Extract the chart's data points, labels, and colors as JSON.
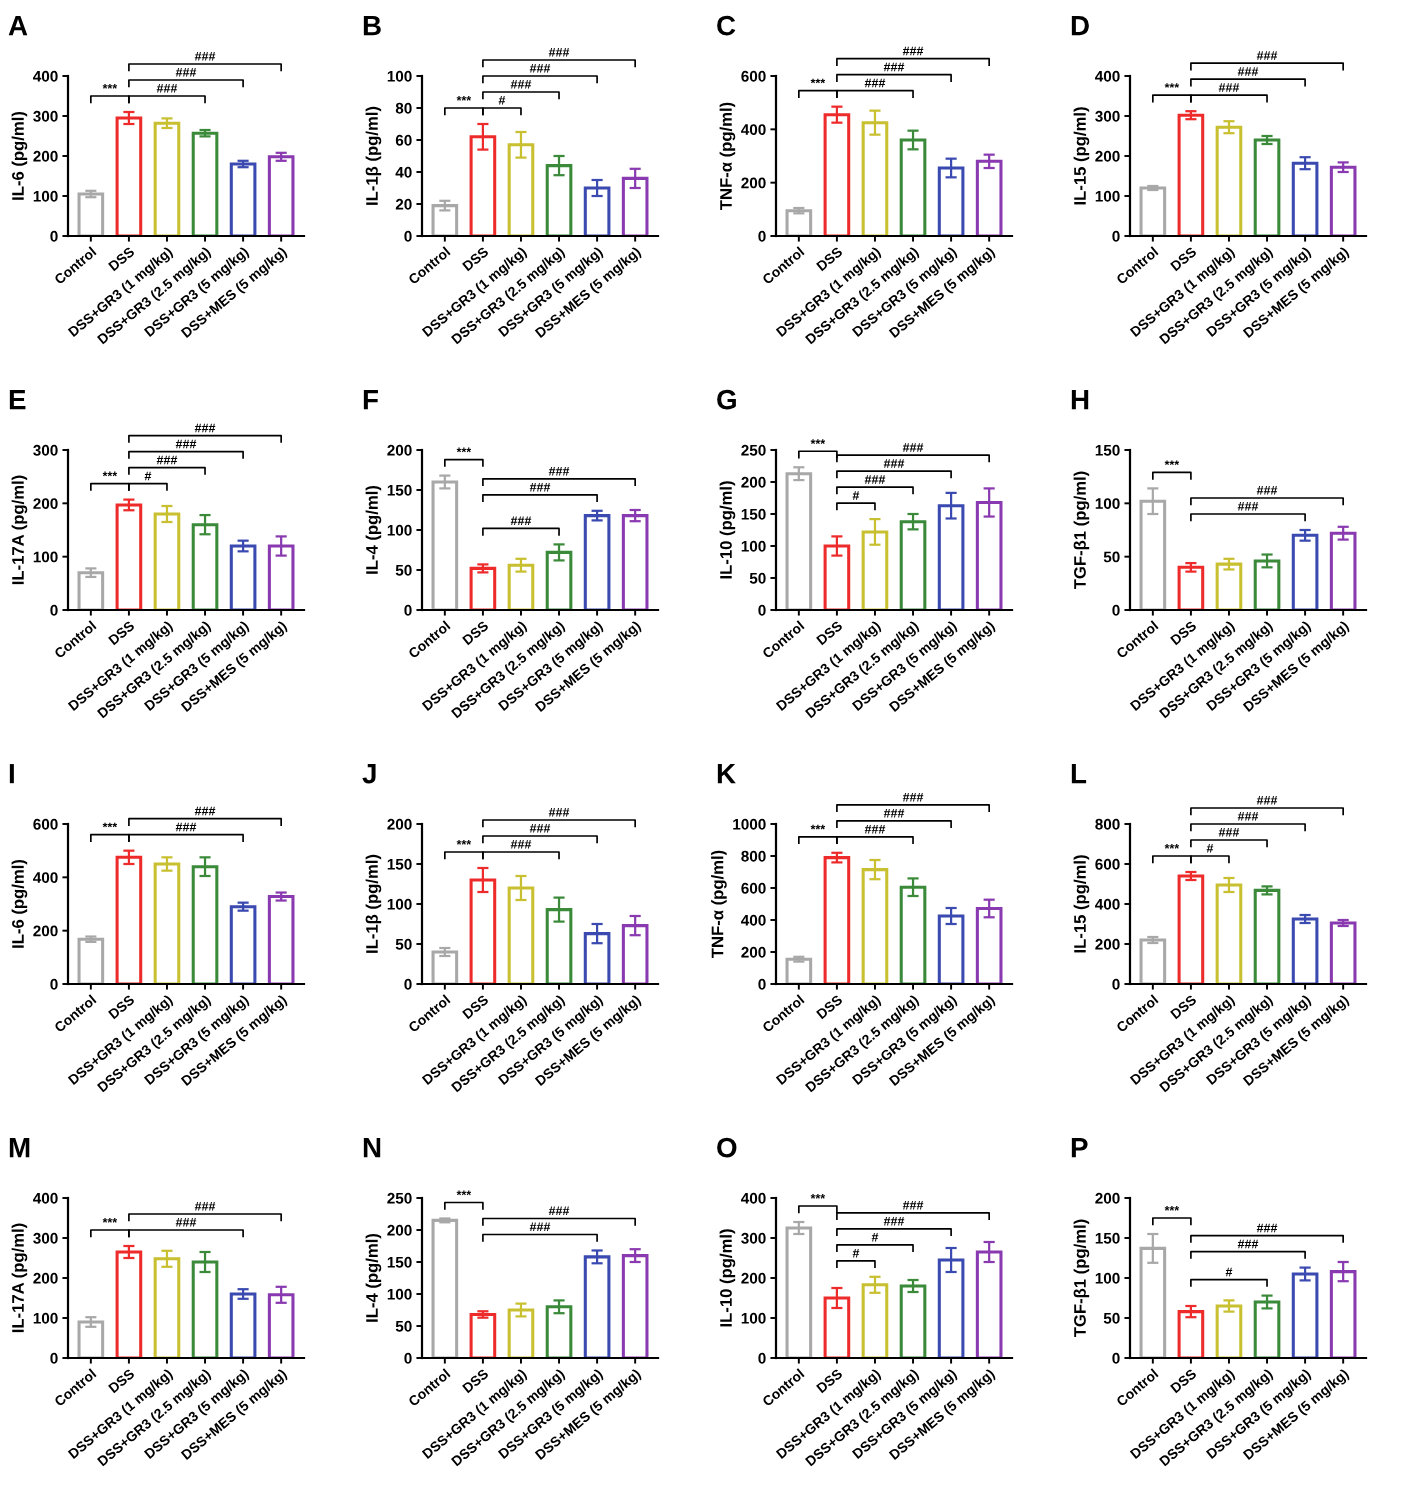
{
  "chart_data": [
    {
      "type": "bar",
      "title": "A",
      "ylabel": "IL-6 (pg/ml)",
      "categories": [
        "Control",
        "DSS",
        "DSS+GR3 (1 mg/kg)",
        "DSS+GR3 (2.5 mg/kg)",
        "DSS+GR3 (5 mg/kg)",
        "DSS+MES (5 mg/kg)"
      ],
      "values": [
        105,
        295,
        282,
        257,
        180,
        198
      ],
      "errors": [
        8,
        15,
        12,
        8,
        8,
        10
      ],
      "colors": [
        "#a8a8a8",
        "#ee2b2b",
        "#c8c030",
        "#3a8a3a",
        "#3a4ab0",
        "#8a3ab0"
      ],
      "ylim": [
        0,
        400
      ],
      "yticks": [
        0,
        100,
        200,
        300,
        400
      ],
      "annotations": [
        "***",
        "###",
        "###",
        "###"
      ]
    },
    {
      "type": "bar",
      "title": "B",
      "ylabel": "IL-1β (pg/ml)",
      "categories": [
        "Control",
        "DSS",
        "DSS+GR3 (1 mg/kg)",
        "DSS+GR3 (2.5 mg/kg)",
        "DSS+GR3 (5 mg/kg)",
        "DSS+MES (5 mg/kg)"
      ],
      "values": [
        19,
        62,
        57,
        44,
        30,
        36
      ],
      "errors": [
        3,
        8,
        8,
        6,
        5,
        6
      ],
      "colors": [
        "#a8a8a8",
        "#ee2b2b",
        "#c8c030",
        "#3a8a3a",
        "#3a4ab0",
        "#8a3ab0"
      ],
      "ylim": [
        0,
        100
      ],
      "yticks": [
        0,
        20,
        40,
        60,
        80,
        100
      ],
      "annotations": [
        "***",
        "#",
        "###",
        "###",
        "###"
      ]
    },
    {
      "type": "bar",
      "title": "C",
      "ylabel": "TNF-α (pg/ml)",
      "categories": [
        "Control",
        "DSS",
        "DSS+GR3 (1 mg/kg)",
        "DSS+GR3 (2.5 mg/kg)",
        "DSS+GR3 (5 mg/kg)",
        "DSS+MES (5 mg/kg)"
      ],
      "values": [
        95,
        455,
        425,
        360,
        255,
        280
      ],
      "errors": [
        10,
        30,
        45,
        35,
        35,
        25
      ],
      "colors": [
        "#a8a8a8",
        "#ee2b2b",
        "#c8c030",
        "#3a8a3a",
        "#3a4ab0",
        "#8a3ab0"
      ],
      "ylim": [
        0,
        600
      ],
      "yticks": [
        0,
        200,
        400,
        600
      ],
      "annotations": [
        "***",
        "###",
        "###",
        "###"
      ]
    },
    {
      "type": "bar",
      "title": "D",
      "ylabel": "IL-15 (pg/ml)",
      "categories": [
        "Control",
        "DSS",
        "DSS+GR3 (1 mg/kg)",
        "DSS+GR3 (2.5 mg/kg)",
        "DSS+GR3 (5 mg/kg)",
        "DSS+MES (5 mg/kg)"
      ],
      "values": [
        120,
        302,
        272,
        240,
        182,
        172
      ],
      "errors": [
        5,
        10,
        15,
        10,
        15,
        12
      ],
      "colors": [
        "#a8a8a8",
        "#ee2b2b",
        "#c8c030",
        "#3a8a3a",
        "#3a4ab0",
        "#8a3ab0"
      ],
      "ylim": [
        0,
        400
      ],
      "yticks": [
        0,
        100,
        200,
        300,
        400
      ],
      "annotations": [
        "***",
        "###",
        "###",
        "###"
      ]
    },
    {
      "type": "bar",
      "title": "E",
      "ylabel": "IL-17A (pg/ml)",
      "categories": [
        "Control",
        "DSS",
        "DSS+GR3 (1 mg/kg)",
        "DSS+GR3 (2.5 mg/kg)",
        "DSS+GR3 (5 mg/kg)",
        "DSS+MES (5 mg/kg)"
      ],
      "values": [
        70,
        197,
        180,
        160,
        120,
        120
      ],
      "errors": [
        8,
        10,
        15,
        18,
        10,
        18
      ],
      "colors": [
        "#a8a8a8",
        "#ee2b2b",
        "#c8c030",
        "#3a8a3a",
        "#3a4ab0",
        "#8a3ab0"
      ],
      "ylim": [
        0,
        300
      ],
      "yticks": [
        0,
        100,
        200,
        300
      ],
      "annotations": [
        "***",
        "#",
        "###",
        "###",
        "###"
      ]
    },
    {
      "type": "bar",
      "title": "F",
      "ylabel": "IL-4 (pg/ml)",
      "categories": [
        "Control",
        "DSS",
        "DSS+GR3 (1 mg/kg)",
        "DSS+GR3 (2.5 mg/kg)",
        "DSS+GR3 (5 mg/kg)",
        "DSS+MES (5 mg/kg)"
      ],
      "values": [
        160,
        52,
        56,
        72,
        118,
        118
      ],
      "errors": [
        8,
        5,
        8,
        10,
        6,
        7
      ],
      "colors": [
        "#a8a8a8",
        "#ee2b2b",
        "#c8c030",
        "#3a8a3a",
        "#3a4ab0",
        "#8a3ab0"
      ],
      "ylim": [
        0,
        200
      ],
      "yticks": [
        0,
        50,
        100,
        150,
        200
      ],
      "annotations": [
        "***",
        "###",
        "###",
        "###"
      ]
    },
    {
      "type": "bar",
      "title": "G",
      "ylabel": "IL-10 (pg/ml)",
      "categories": [
        "Control",
        "DSS",
        "DSS+GR3 (1 mg/kg)",
        "DSS+GR3 (2.5 mg/kg)",
        "DSS+GR3 (5 mg/kg)",
        "DSS+MES (5 mg/kg)"
      ],
      "values": [
        213,
        100,
        122,
        138,
        163,
        168
      ],
      "errors": [
        10,
        15,
        20,
        12,
        20,
        22
      ],
      "colors": [
        "#a8a8a8",
        "#ee2b2b",
        "#c8c030",
        "#3a8a3a",
        "#3a4ab0",
        "#8a3ab0"
      ],
      "ylim": [
        0,
        250
      ],
      "yticks": [
        0,
        50,
        100,
        150,
        200,
        250
      ],
      "annotations": [
        "***",
        "#",
        "###",
        "###",
        "###"
      ]
    },
    {
      "type": "bar",
      "title": "H",
      "ylabel": "TGF-β1 (pg/ml)",
      "categories": [
        "Control",
        "DSS",
        "DSS+GR3 (1 mg/kg)",
        "DSS+GR3 (2.5 mg/kg)",
        "DSS+GR3 (5 mg/kg)",
        "DSS+MES (5 mg/kg)"
      ],
      "values": [
        102,
        40,
        43,
        46,
        70,
        72
      ],
      "errors": [
        12,
        4,
        5,
        6,
        5,
        6
      ],
      "colors": [
        "#a8a8a8",
        "#ee2b2b",
        "#c8c030",
        "#3a8a3a",
        "#3a4ab0",
        "#8a3ab0"
      ],
      "ylim": [
        0,
        150
      ],
      "yticks": [
        0,
        50,
        100,
        150
      ],
      "annotations": [
        "***",
        "###",
        "###"
      ]
    },
    {
      "type": "bar",
      "title": "I",
      "ylabel": "IL-6 (pg/ml)",
      "categories": [
        "Control",
        "DSS",
        "DSS+GR3 (1 mg/kg)",
        "DSS+GR3 (2.5 mg/kg)",
        "DSS+GR3 (5 mg/kg)",
        "DSS+MES (5 mg/kg)"
      ],
      "values": [
        168,
        475,
        450,
        440,
        290,
        328
      ],
      "errors": [
        10,
        25,
        25,
        35,
        15,
        15
      ],
      "colors": [
        "#a8a8a8",
        "#ee2b2b",
        "#c8c030",
        "#3a8a3a",
        "#3a4ab0",
        "#8a3ab0"
      ],
      "ylim": [
        0,
        600
      ],
      "yticks": [
        0,
        200,
        400,
        600
      ],
      "annotations": [
        "***",
        "###",
        "###"
      ]
    },
    {
      "type": "bar",
      "title": "J",
      "ylabel": "IL-1β (pg/ml)",
      "categories": [
        "Control",
        "DSS",
        "DSS+GR3 (1 mg/kg)",
        "DSS+GR3 (2.5 mg/kg)",
        "DSS+GR3 (5 mg/kg)",
        "DSS+MES (5 mg/kg)"
      ],
      "values": [
        40,
        130,
        120,
        93,
        63,
        73
      ],
      "errors": [
        5,
        15,
        15,
        15,
        12,
        12
      ],
      "colors": [
        "#a8a8a8",
        "#ee2b2b",
        "#c8c030",
        "#3a8a3a",
        "#3a4ab0",
        "#8a3ab0"
      ],
      "ylim": [
        0,
        200
      ],
      "yticks": [
        0,
        50,
        100,
        150,
        200
      ],
      "annotations": [
        "***",
        "###",
        "###",
        "###"
      ]
    },
    {
      "type": "bar",
      "title": "K",
      "ylabel": "TNF-α (pg/ml)",
      "categories": [
        "Control",
        "DSS",
        "DSS+GR3 (1 mg/kg)",
        "DSS+GR3 (2.5 mg/kg)",
        "DSS+GR3 (5 mg/kg)",
        "DSS+MES (5 mg/kg)"
      ],
      "values": [
        155,
        790,
        715,
        605,
        425,
        472
      ],
      "errors": [
        15,
        30,
        60,
        55,
        50,
        55
      ],
      "colors": [
        "#a8a8a8",
        "#ee2b2b",
        "#c8c030",
        "#3a8a3a",
        "#3a4ab0",
        "#8a3ab0"
      ],
      "ylim": [
        0,
        1000
      ],
      "yticks": [
        0,
        200,
        400,
        600,
        800,
        1000
      ],
      "annotations": [
        "***",
        "###",
        "###",
        "###"
      ]
    },
    {
      "type": "bar",
      "title": "L",
      "ylabel": "IL-15 (pg/ml)",
      "categories": [
        "Control",
        "DSS",
        "DSS+GR3 (1 mg/kg)",
        "DSS+GR3 (2.5 mg/kg)",
        "DSS+GR3 (5 mg/kg)",
        "DSS+MES (5 mg/kg)"
      ],
      "values": [
        220,
        540,
        495,
        468,
        325,
        305
      ],
      "errors": [
        15,
        20,
        35,
        20,
        20,
        15
      ],
      "colors": [
        "#a8a8a8",
        "#ee2b2b",
        "#c8c030",
        "#3a8a3a",
        "#3a4ab0",
        "#8a3ab0"
      ],
      "ylim": [
        0,
        800
      ],
      "yticks": [
        0,
        200,
        400,
        600,
        800
      ],
      "annotations": [
        "***",
        "#",
        "###",
        "###",
        "###"
      ]
    },
    {
      "type": "bar",
      "title": "M",
      "ylabel": "IL-17A (pg/ml)",
      "categories": [
        "Control",
        "DSS",
        "DSS+GR3 (1 mg/kg)",
        "DSS+GR3 (2.5 mg/kg)",
        "DSS+GR3 (5 mg/kg)",
        "DSS+MES (5 mg/kg)"
      ],
      "values": [
        90,
        265,
        248,
        240,
        160,
        158
      ],
      "errors": [
        12,
        15,
        20,
        25,
        12,
        20
      ],
      "colors": [
        "#a8a8a8",
        "#ee2b2b",
        "#c8c030",
        "#3a8a3a",
        "#3a4ab0",
        "#8a3ab0"
      ],
      "ylim": [
        0,
        400
      ],
      "yticks": [
        0,
        100,
        200,
        300,
        400
      ],
      "annotations": [
        "***",
        "###",
        "###"
      ]
    },
    {
      "type": "bar",
      "title": "N",
      "ylabel": "IL-4 (pg/ml)",
      "categories": [
        "Control",
        "DSS",
        "DSS+GR3 (1 mg/kg)",
        "DSS+GR3 (2.5 mg/kg)",
        "DSS+GR3 (5 mg/kg)",
        "DSS+MES (5 mg/kg)"
      ],
      "values": [
        215,
        68,
        75,
        80,
        158,
        160
      ],
      "errors": [
        3,
        5,
        10,
        10,
        10,
        10
      ],
      "colors": [
        "#a8a8a8",
        "#ee2b2b",
        "#c8c030",
        "#3a8a3a",
        "#3a4ab0",
        "#8a3ab0"
      ],
      "ylim": [
        0,
        250
      ],
      "yticks": [
        0,
        50,
        100,
        150,
        200,
        250
      ],
      "annotations": [
        "***",
        "###",
        "###"
      ]
    },
    {
      "type": "bar",
      "title": "O",
      "ylabel": "IL-10 (pg/ml)",
      "categories": [
        "Control",
        "DSS",
        "DSS+GR3 (1 mg/kg)",
        "DSS+GR3 (2.5 mg/kg)",
        "DSS+GR3 (5 mg/kg)",
        "DSS+MES (5 mg/kg)"
      ],
      "values": [
        325,
        150,
        183,
        180,
        245,
        265
      ],
      "errors": [
        15,
        25,
        20,
        15,
        30,
        25
      ],
      "colors": [
        "#a8a8a8",
        "#ee2b2b",
        "#c8c030",
        "#3a8a3a",
        "#3a4ab0",
        "#8a3ab0"
      ],
      "ylim": [
        0,
        400
      ],
      "yticks": [
        0,
        100,
        200,
        300,
        400
      ],
      "annotations": [
        "***",
        "#",
        "#",
        "###",
        "###"
      ]
    },
    {
      "type": "bar",
      "title": "P",
      "ylabel": "TGF-β1 (pg/ml)",
      "categories": [
        "Control",
        "DSS",
        "DSS+GR3 (1 mg/kg)",
        "DSS+GR3 (2.5 mg/kg)",
        "DSS+GR3 (5 mg/kg)",
        "DSS+MES (5 mg/kg)"
      ],
      "values": [
        137,
        58,
        65,
        70,
        105,
        108
      ],
      "errors": [
        18,
        7,
        7,
        8,
        8,
        12
      ],
      "colors": [
        "#a8a8a8",
        "#ee2b2b",
        "#c8c030",
        "#3a8a3a",
        "#3a4ab0",
        "#8a3ab0"
      ],
      "ylim": [
        0,
        200
      ],
      "yticks": [
        0,
        50,
        100,
        150,
        200
      ],
      "annotations": [
        "***",
        "#",
        "###",
        "###"
      ]
    }
  ]
}
